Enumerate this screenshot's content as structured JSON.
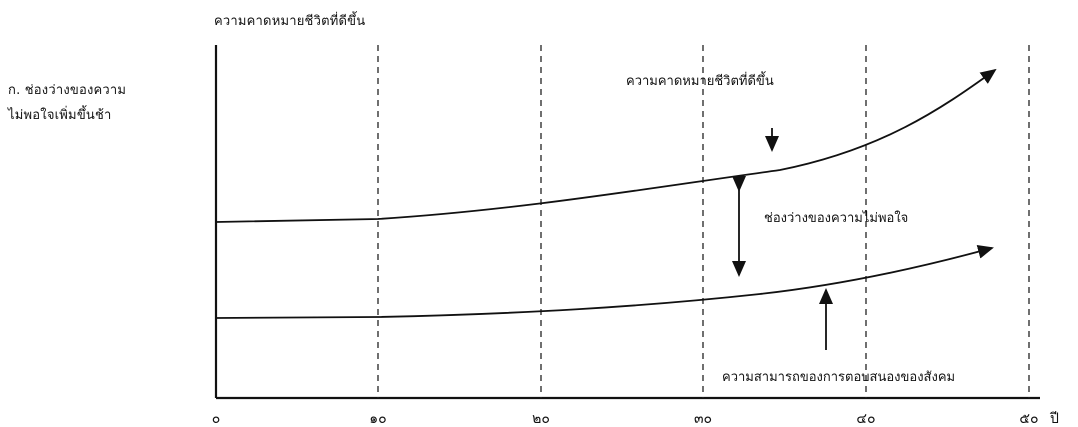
{
  "panel_label": {
    "line1": "ก. ช่องว่างของความ",
    "line2": "ไม่พอใจเพิ่มขึ้นช้า"
  },
  "y_axis_title": "ความคาดหมายชีวิตที่ดีขึ้น",
  "x_axis": {
    "ticks": [
      "๐",
      "๑๐",
      "๒๐",
      "๓๐",
      "๔๐",
      "๕๐"
    ],
    "unit": "ปี",
    "range": [
      0,
      50
    ]
  },
  "annotations": {
    "expectation": "ความคาดหมายชีวิตที่ดีขึ้น",
    "gap": "ช่องว่างของความไม่พอใจ",
    "capacity": "ความสามารถของการตอบสนองของสังคม"
  },
  "colors": {
    "ink": "#111111",
    "background": "#ffffff"
  }
}
